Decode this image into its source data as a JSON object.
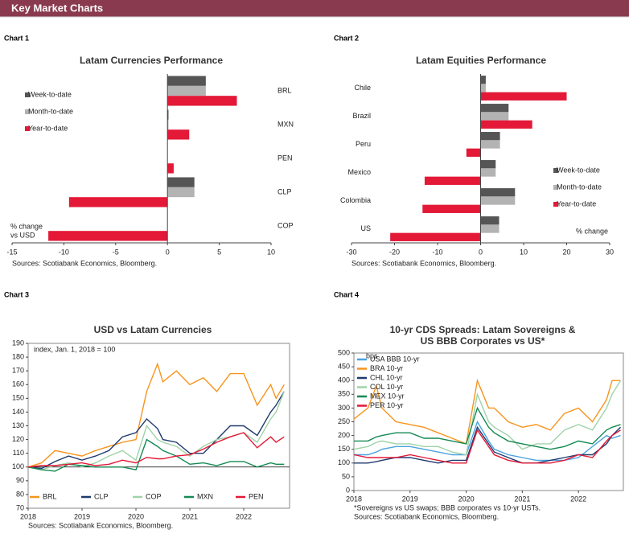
{
  "header": {
    "title": "Key Market Charts"
  },
  "chart_data": [
    {
      "type": "hbar",
      "label": "Chart 1",
      "title": "Latam Currencies Performance",
      "categories": [
        "BRL",
        "MXN",
        "PEN",
        "CLP",
        "COP"
      ],
      "series": [
        {
          "name": "Week-to-date",
          "color": "#555555",
          "values": [
            3.7,
            0.1,
            0,
            2.6,
            0
          ]
        },
        {
          "name": "Month-to-date",
          "color": "#b3b3b3",
          "values": [
            3.7,
            0.1,
            0,
            2.6,
            0
          ]
        },
        {
          "name": "Year-to-date",
          "color": "#e31937",
          "values": [
            6.7,
            2.1,
            0.6,
            -9.5,
            -11.5
          ]
        }
      ],
      "xlim": [
        -15,
        10
      ],
      "xticks": [
        -15,
        -10,
        -5,
        0,
        5,
        10
      ],
      "legend": "upper left",
      "annotation": [
        "% change",
        "vs USD"
      ],
      "source": "Sources: Scotiabank Economics, Bloomberg."
    },
    {
      "type": "hbar",
      "label": "Chart 2",
      "title": "Latam Equities Performance",
      "categories": [
        "Chile",
        "Brazil",
        "Peru",
        "Mexico",
        "Colombia",
        "US"
      ],
      "series": [
        {
          "name": "Week-to-date",
          "color": "#555555",
          "values": [
            1.2,
            6.5,
            4.5,
            3.5,
            8,
            4.3
          ]
        },
        {
          "name": "Month-to-date",
          "color": "#b3b3b3",
          "values": [
            1.2,
            6.5,
            4.5,
            3.5,
            8,
            4.3
          ]
        },
        {
          "name": "Year-to-date",
          "color": "#e31937",
          "values": [
            20,
            12,
            -3.3,
            -13,
            -13.5,
            -21
          ]
        }
      ],
      "xlim": [
        -30,
        30
      ],
      "xticks": [
        -30,
        -20,
        -10,
        0,
        10,
        20,
        30
      ],
      "legend": "lower right",
      "annotation": [
        "% change"
      ],
      "source": "Sources: Scotiabank Economics, Bloomberg."
    },
    {
      "type": "line",
      "label": "Chart 3",
      "title": [
        "USD vs Latam Currencies"
      ],
      "x": [
        2018,
        2018.25,
        2018.5,
        2018.75,
        2019,
        2019.25,
        2019.5,
        2019.75,
        2020,
        2020.2,
        2020.4,
        2020.5,
        2020.75,
        2021,
        2021.25,
        2021.5,
        2021.75,
        2022,
        2022.25,
        2022.5,
        2022.6,
        2022.75
      ],
      "series": [
        {
          "name": "BRL",
          "color": "#f7941d",
          "values": [
            100,
            103,
            112,
            110,
            108,
            112,
            115,
            118,
            120,
            155,
            175,
            162,
            170,
            160,
            165,
            155,
            168,
            168,
            145,
            160,
            150,
            160
          ]
        },
        {
          "name": "CLP",
          "color": "#1f3a6e",
          "values": [
            100,
            99,
            104,
            108,
            105,
            108,
            112,
            122,
            125,
            135,
            128,
            120,
            118,
            110,
            110,
            120,
            130,
            130,
            123,
            140,
            145,
            155
          ]
        },
        {
          "name": "COP",
          "color": "#9fd3a8",
          "values": [
            100,
            98,
            101,
            103,
            100,
            103,
            108,
            112,
            105,
            130,
            120,
            118,
            115,
            108,
            115,
            120,
            122,
            125,
            118,
            135,
            140,
            155
          ]
        },
        {
          "name": "MXN",
          "color": "#138a52",
          "values": [
            100,
            98,
            97,
            102,
            101,
            100,
            100,
            100,
            98,
            120,
            115,
            112,
            108,
            102,
            103,
            101,
            104,
            104,
            100,
            103,
            102,
            102
          ]
        },
        {
          "name": "PEN",
          "color": "#e31937",
          "values": [
            100,
            101,
            101,
            102,
            103,
            101,
            102,
            105,
            103,
            107,
            106,
            106,
            108,
            109,
            113,
            118,
            122,
            125,
            114,
            122,
            118,
            122
          ]
        }
      ],
      "hline": 100,
      "xlim": [
        2018,
        2022.85
      ],
      "xticks": [
        2018,
        2019,
        2020,
        2021,
        2022
      ],
      "ylim": [
        70,
        190
      ],
      "yticks": [
        70,
        80,
        90,
        100,
        110,
        120,
        130,
        140,
        150,
        160,
        170,
        180,
        190
      ],
      "legend": "bottom",
      "annotation": [
        "index, Jan. 1, 2018 = 100"
      ],
      "source": "Sources: Scotiabank Economics, Bloomberg."
    },
    {
      "type": "line",
      "label": "Chart 4",
      "title": [
        "10-yr CDS Spreads: Latam Sovereigns &",
        "US BBB Corporates vs US*"
      ],
      "x": [
        2018,
        2018.25,
        2018.4,
        2018.5,
        2018.75,
        2019,
        2019.25,
        2019.5,
        2019.75,
        2020,
        2020.2,
        2020.4,
        2020.5,
        2020.75,
        2021,
        2021.25,
        2021.5,
        2021.75,
        2022,
        2022.25,
        2022.5,
        2022.6,
        2022.75
      ],
      "series": [
        {
          "name": "USA BBB 10-yr",
          "color": "#4aa3df",
          "values": [
            130,
            130,
            140,
            150,
            160,
            160,
            150,
            140,
            130,
            130,
            250,
            180,
            150,
            130,
            120,
            110,
            110,
            110,
            120,
            160,
            200,
            190,
            200
          ]
        },
        {
          "name": "BRA 10-yr",
          "color": "#f7941d",
          "values": [
            260,
            300,
            380,
            300,
            250,
            240,
            230,
            210,
            190,
            170,
            400,
            300,
            300,
            250,
            230,
            240,
            220,
            280,
            300,
            250,
            330,
            400,
            400
          ]
        },
        {
          "name": "CHL 10-yr",
          "color": "#1f3a6e",
          "values": [
            100,
            100,
            105,
            110,
            120,
            120,
            110,
            100,
            110,
            110,
            230,
            170,
            140,
            120,
            100,
            100,
            110,
            120,
            130,
            130,
            170,
            200,
            230
          ]
        },
        {
          "name": "COL 10-yr",
          "color": "#9fd3a8",
          "values": [
            150,
            160,
            175,
            180,
            170,
            170,
            160,
            160,
            140,
            130,
            350,
            250,
            230,
            200,
            150,
            170,
            170,
            220,
            240,
            220,
            300,
            350,
            400
          ]
        },
        {
          "name": "MEX 10-yr",
          "color": "#138a52",
          "values": [
            180,
            180,
            195,
            200,
            210,
            210,
            190,
            190,
            180,
            170,
            300,
            230,
            210,
            180,
            170,
            160,
            150,
            160,
            180,
            170,
            220,
            230,
            240
          ]
        },
        {
          "name": "PER 10-yr",
          "color": "#e31937",
          "values": [
            130,
            120,
            120,
            120,
            120,
            130,
            120,
            110,
            100,
            100,
            220,
            160,
            130,
            110,
            100,
            100,
            100,
            110,
            130,
            120,
            180,
            200,
            220
          ]
        }
      ],
      "xlim": [
        2018,
        2022.8
      ],
      "xticks": [
        2018,
        2019,
        2020,
        2021,
        2022
      ],
      "ylim": [
        0,
        500
      ],
      "yticks": [
        0,
        50,
        100,
        150,
        200,
        250,
        300,
        350,
        400,
        450,
        500
      ],
      "legend": "upper left",
      "annotation": [
        "bps"
      ],
      "note": "*Sovereigns vs US swaps; BBB corporates vs 10-yr USTs.",
      "source": "Sources: Scotiabank Economics, Bloomberg."
    }
  ]
}
